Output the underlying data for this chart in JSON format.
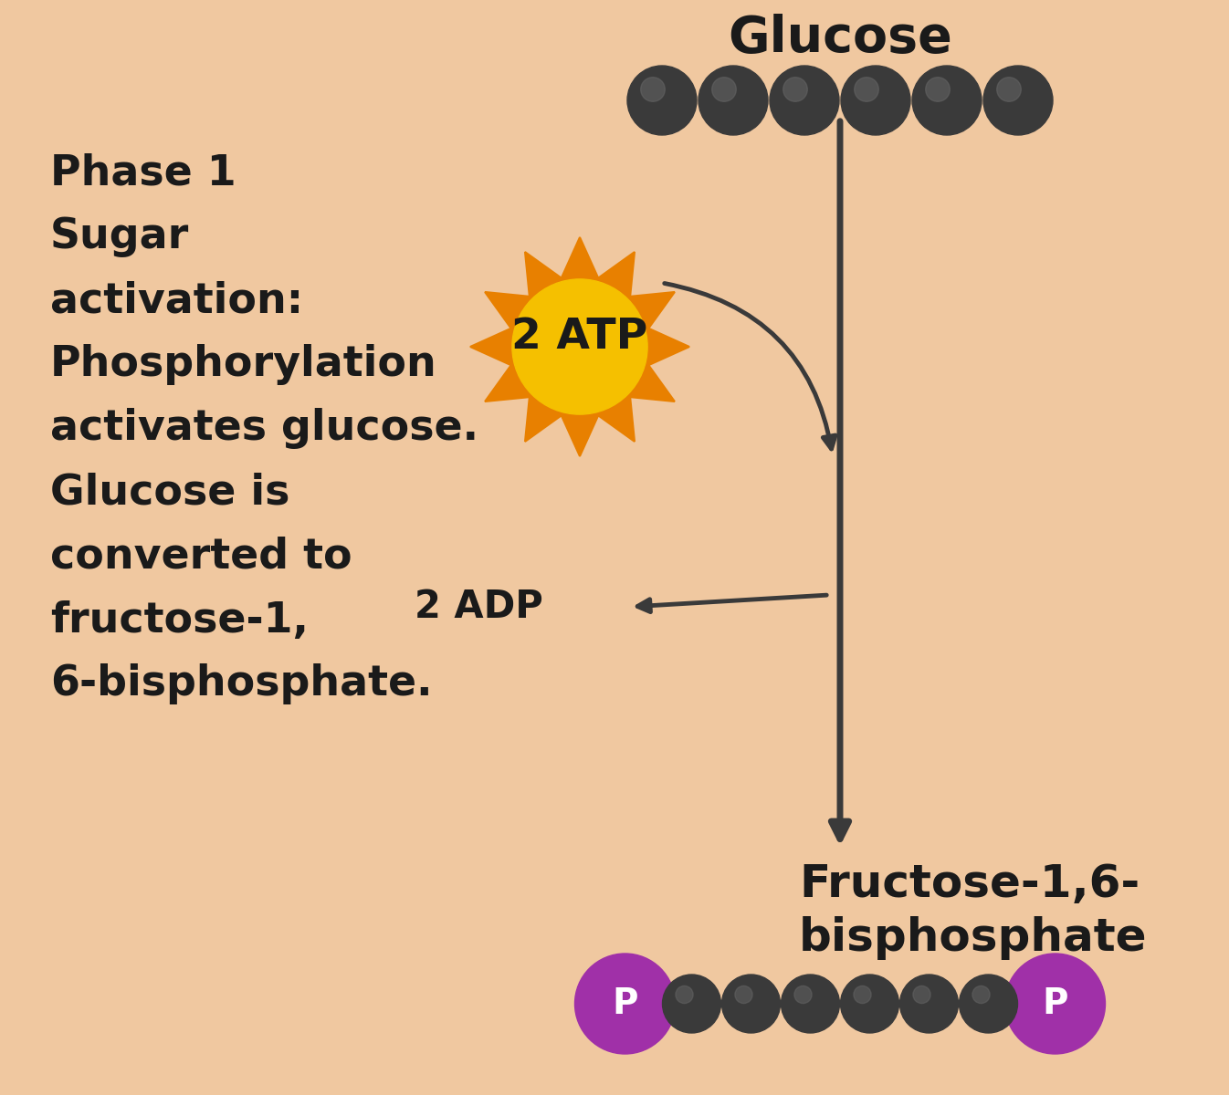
{
  "background_color": "#F0C8A0",
  "title_text": "Glucose",
  "fructose_label": "Fructose-1,6-\nbisphosphate",
  "phase_line1": "Phase 1",
  "phase_line2": "Sugar",
  "phase_line3": "activation:",
  "phase_line4": "Phosphorylation",
  "phase_line5": "activates glucose.",
  "phase_line6": "Glucose is",
  "phase_line7": "converted to",
  "phase_line8": "fructose-1,",
  "phase_line9": "6-bisphosphate.",
  "atp_text": "2 ATP",
  "adp_text": "2 ADP",
  "glucose_ball_color": "#3A3A3A",
  "glucose_ball_count": 6,
  "phosphate_color": "#A030A8",
  "phosphate_label_color": "#FFFFFF",
  "arrow_color": "#3A3A3A",
  "atp_burst_color_inner": "#F5C000",
  "atp_burst_color_outer": "#E88000",
  "atp_text_color": "#1A1A1A",
  "adp_text_color": "#1A1A1A",
  "text_color": "#1A1A1A",
  "fig_width": 13.46,
  "fig_height": 12.0,
  "dpi": 100
}
